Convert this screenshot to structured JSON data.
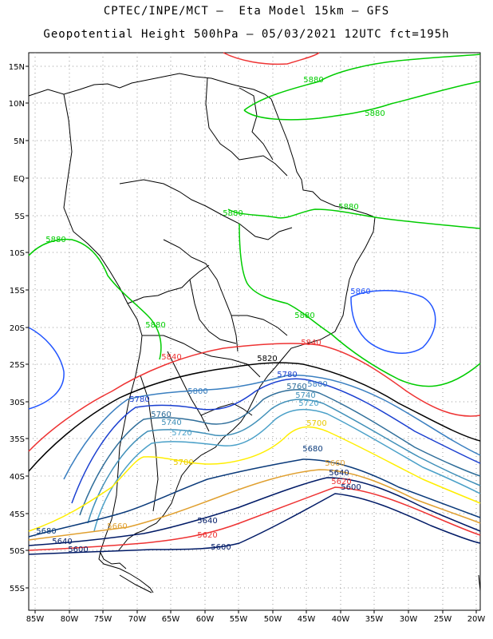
{
  "title": {
    "line1": "CPTEC/INPE/MCT –  Eta Model 15km – GFS",
    "line2": "Geopotential Height 500hPa – 05/03/2021 12UTC fct=195h"
  },
  "axes": {
    "lat_ticks": [
      "15N",
      "10N",
      "5N",
      "EQ",
      "5S",
      "10S",
      "15S",
      "20S",
      "25S",
      "30S",
      "35S",
      "40S",
      "45S",
      "50S",
      "55S"
    ],
    "lon_ticks": [
      "85W",
      "80W",
      "75W",
      "70W",
      "65W",
      "60W",
      "55W",
      "50W",
      "45W",
      "40W",
      "35W",
      "30W",
      "25W",
      "20W"
    ]
  },
  "contours": [
    {
      "value": "5880",
      "color": "#00cc00"
    },
    {
      "value": "5860",
      "color": "#2255ff"
    },
    {
      "value": "5840",
      "color": "#ee3333"
    },
    {
      "value": "5820",
      "color": "#000000"
    },
    {
      "value": "5800",
      "color": "#3a7fc0"
    },
    {
      "value": "5780",
      "color": "#1a3fd0"
    },
    {
      "value": "5760",
      "color": "#2f6e9a"
    },
    {
      "value": "5740",
      "color": "#3f8fb8"
    },
    {
      "value": "5720",
      "color": "#4aa0c8"
    },
    {
      "value": "5700",
      "color": "#ffee00"
    },
    {
      "value": "5680",
      "color": "#0a3a7a"
    },
    {
      "value": "5660",
      "color": "#e0a030"
    },
    {
      "value": "5640",
      "color": "#001a66"
    },
    {
      "value": "5620",
      "color": "#ee3333"
    },
    {
      "value": "5600",
      "color": "#001a66"
    }
  ],
  "contour_labels": [
    {
      "text": "5880",
      "color": "#00cc00"
    },
    {
      "text": "5880",
      "color": "#00cc00"
    },
    {
      "text": "5880",
      "color": "#00cc00"
    },
    {
      "text": "5880",
      "color": "#00cc00"
    },
    {
      "text": "5880",
      "color": "#00cc00"
    },
    {
      "text": "5880",
      "color": "#00cc00"
    },
    {
      "text": "5880",
      "color": "#00cc00"
    },
    {
      "text": "5860",
      "color": "#2255ff"
    },
    {
      "text": "5840",
      "color": "#ee3333"
    },
    {
      "text": "5840",
      "color": "#ee3333"
    },
    {
      "text": "5820",
      "color": "#000000"
    },
    {
      "text": "5800",
      "color": "#3a7fc0"
    },
    {
      "text": "5800",
      "color": "#3a7fc0"
    },
    {
      "text": "5780",
      "color": "#1a3fd0"
    },
    {
      "text": "5780",
      "color": "#1a3fd0"
    },
    {
      "text": "5760",
      "color": "#2f6e9a"
    },
    {
      "text": "5760",
      "color": "#2f6e9a"
    },
    {
      "text": "5740",
      "color": "#3f8fb8"
    },
    {
      "text": "5740",
      "color": "#3f8fb8"
    },
    {
      "text": "5720",
      "color": "#4aa0c8"
    },
    {
      "text": "5720",
      "color": "#4aa0c8"
    },
    {
      "text": "5700",
      "color": "#e8c800"
    },
    {
      "text": "5700",
      "color": "#e8c800"
    },
    {
      "text": "5680",
      "color": "#0a3a7a"
    },
    {
      "text": "5680",
      "color": "#0a3a7a"
    },
    {
      "text": "5660",
      "color": "#e0a030"
    },
    {
      "text": "5660",
      "color": "#e0a030"
    },
    {
      "text": "5640",
      "color": "#001a66"
    },
    {
      "text": "5640",
      "color": "#001a66"
    },
    {
      "text": "5640",
      "color": "#001a66"
    },
    {
      "text": "5620",
      "color": "#ee3333"
    },
    {
      "text": "5620",
      "color": "#ee3333"
    },
    {
      "text": "5600",
      "color": "#001a66"
    },
    {
      "text": "5600",
      "color": "#001a66"
    },
    {
      "text": "5600",
      "color": "#001a66"
    }
  ]
}
